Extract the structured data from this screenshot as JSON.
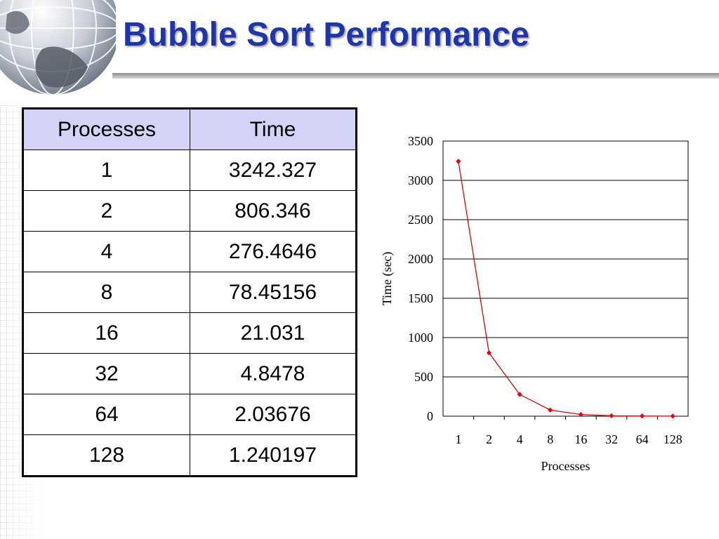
{
  "slide": {
    "title": "Bubble Sort Performance"
  },
  "table": {
    "headers": [
      "Processes",
      "Time"
    ],
    "rows": [
      [
        "1",
        "3242.327"
      ],
      [
        "2",
        "806.346"
      ],
      [
        "4",
        "276.4646"
      ],
      [
        "8",
        "78.45156"
      ],
      [
        "16",
        "21.031"
      ],
      [
        "32",
        "4.8478"
      ],
      [
        "64",
        "2.03676"
      ],
      [
        "128",
        "1.240197"
      ]
    ]
  },
  "chart_data": {
    "type": "line",
    "categories": [
      "1",
      "2",
      "4",
      "8",
      "16",
      "32",
      "64",
      "128"
    ],
    "series": [
      {
        "values": [
          3242.327,
          806.346,
          276.4646,
          78.45156,
          21.031,
          4.8478,
          2.03676,
          1.240197
        ],
        "color": "#e8000b"
      }
    ],
    "xlabel": "Processes",
    "ylabel": "Time (sec)",
    "ylim": [
      0,
      3500
    ],
    "yticks": [
      "0",
      "500",
      "1000",
      "1500",
      "2000",
      "2500",
      "3000",
      "3500"
    ],
    "grid": true,
    "legend": "none"
  }
}
